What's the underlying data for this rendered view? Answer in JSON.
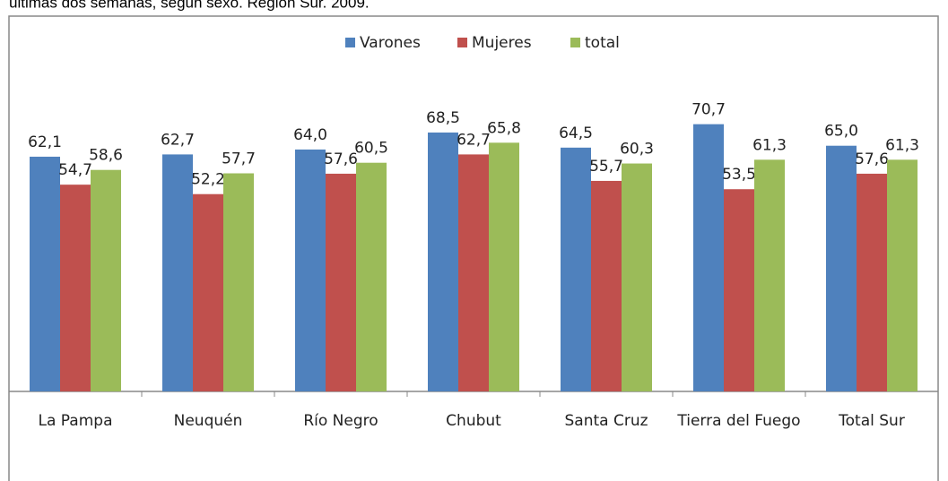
{
  "chart_data": {
    "type": "bar",
    "title": "últimas dos semanas, según sexo. Región Sur. 2009.",
    "categories": [
      "La Pampa",
      "Neuquén",
      "Río Negro",
      "Chubut",
      "Santa Cruz",
      "Tierra del Fuego",
      "Total Sur"
    ],
    "series": [
      {
        "name": "Varones",
        "color": "#4f81bd",
        "values": [
          62.1,
          62.7,
          64.0,
          68.5,
          64.5,
          70.7,
          65.0
        ],
        "value_labels": [
          "62,1",
          "62,7",
          "64,0",
          "68,5",
          "64,5",
          "70,7",
          "65,0"
        ]
      },
      {
        "name": "Mujeres",
        "color": "#c0504d",
        "values": [
          54.7,
          52.2,
          57.6,
          62.7,
          55.7,
          53.5,
          57.6
        ],
        "value_labels": [
          "54,7",
          "52,2",
          "57,6",
          "62,7",
          "55,7",
          "53,5",
          "57,6"
        ]
      },
      {
        "name": "total",
        "color": "#9bbb59",
        "values": [
          58.6,
          57.7,
          60.5,
          65.8,
          60.3,
          61.3,
          61.3
        ],
        "value_labels": [
          "58,6",
          "57,7",
          "60,5",
          "65,8",
          "60,3",
          "61,3",
          "61,3"
        ]
      }
    ],
    "ylim": [
      0,
      100
    ],
    "legend": "top"
  }
}
